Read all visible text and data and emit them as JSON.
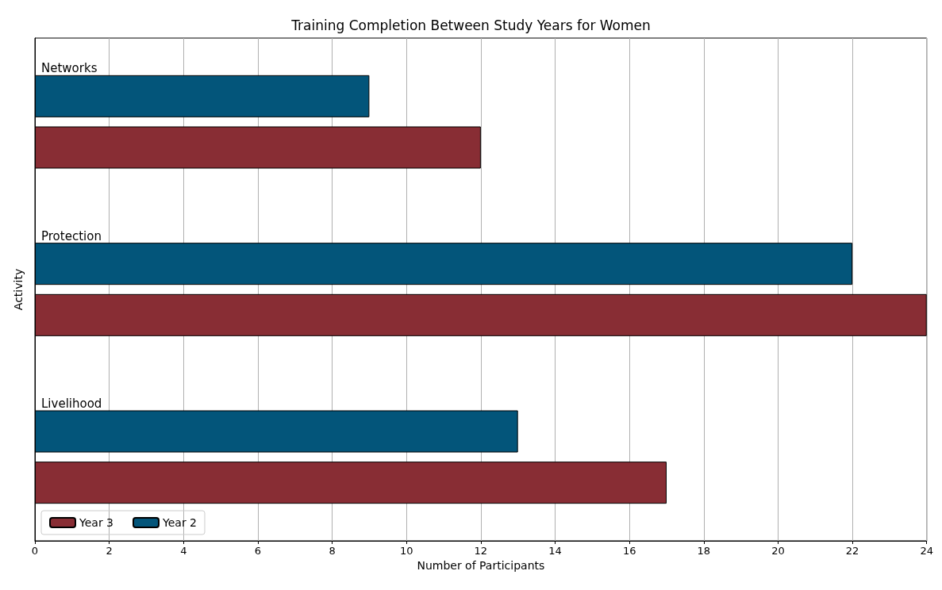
{
  "chart_data": {
    "type": "bar",
    "orientation": "horizontal",
    "title": "Training Completion Between Study Years for Women",
    "xlabel": "Number of Participants",
    "ylabel": "Activity",
    "categories": [
      "Networks",
      "Protection",
      "Livelihood"
    ],
    "series": [
      {
        "name": "Year 3",
        "color": "#882d34",
        "values": [
          12,
          24,
          17
        ]
      },
      {
        "name": "Year 2",
        "color": "#03557a",
        "values": [
          9,
          22,
          13
        ]
      }
    ],
    "xlim": [
      0,
      24
    ],
    "xticks": [
      0,
      2,
      4,
      6,
      8,
      10,
      12,
      14,
      16,
      18,
      20,
      22,
      24
    ],
    "grid": "x",
    "legend": "bottom left"
  }
}
